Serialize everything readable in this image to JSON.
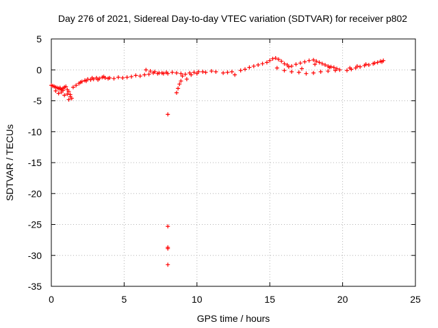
{
  "chart_data": {
    "type": "scatter",
    "title": "Day 276 of 2021, Sidereal Day-to-day VTEC variation (SDTVAR) for receiver p802",
    "xlabel": "GPS time / hours",
    "ylabel": "SDTVAR / TECUs",
    "xlim": [
      0,
      25
    ],
    "ylim": [
      -35,
      5
    ],
    "xticks": [
      0,
      5,
      10,
      15,
      20,
      25
    ],
    "yticks": [
      5,
      0,
      -5,
      -10,
      -15,
      -20,
      -25,
      -30,
      -35
    ],
    "grid": true,
    "marker": "+",
    "color": "#ff0000",
    "series": [
      {
        "name": "SDTVAR",
        "x": [
          0.0,
          0.1,
          0.2,
          0.3,
          0.4,
          0.5,
          0.6,
          0.7,
          0.8,
          0.9,
          1.0,
          1.1,
          1.2,
          1.3,
          1.4,
          0.3,
          0.5,
          0.7,
          0.9,
          1.1,
          1.3,
          1.2,
          0.8,
          0.6,
          1.5,
          1.7,
          1.9,
          2.1,
          2.3,
          2.5,
          2.7,
          2.9,
          3.1,
          3.3,
          3.5,
          3.7,
          3.9,
          2.0,
          2.4,
          2.8,
          3.2,
          3.6,
          4.0,
          4.3,
          4.6,
          4.9,
          5.2,
          5.5,
          5.8,
          6.1,
          6.4,
          6.7,
          7.0,
          7.3,
          7.6,
          7.9,
          6.5,
          6.8,
          7.1,
          7.4,
          7.7,
          8.0,
          8.3,
          8.6,
          8.9,
          9.2,
          9.5,
          9.8,
          10.1,
          10.4,
          9.0,
          9.3,
          9.6,
          8.8,
          8.7,
          8.6,
          8.9,
          10.0,
          10.6,
          11.0,
          11.3,
          11.8,
          12.1,
          12.4,
          12.6,
          13.0,
          13.3,
          13.6,
          13.9,
          14.2,
          14.5,
          14.8,
          15.0,
          15.2,
          15.4,
          15.6,
          15.8,
          16.0,
          16.2,
          16.5,
          16.8,
          17.1,
          17.4,
          17.7,
          18.0,
          18.2,
          18.4,
          18.6,
          18.8,
          19.0,
          19.2,
          19.4,
          19.6,
          19.8,
          15.5,
          16.0,
          16.5,
          17.0,
          17.5,
          18.0,
          18.5,
          19.0,
          19.5,
          16.3,
          17.2,
          18.1,
          19.1,
          20.3,
          20.6,
          20.9,
          21.2,
          21.5,
          21.8,
          22.1,
          22.4,
          22.6,
          22.8,
          20.5,
          21.0,
          21.6,
          22.2,
          22.7,
          8.0,
          8.0,
          8.0,
          8.0,
          8.0
        ],
        "y": [
          -2.5,
          -2.6,
          -2.7,
          -2.8,
          -2.9,
          -3.0,
          -3.1,
          -3.2,
          -3.0,
          -2.8,
          -2.7,
          -3.2,
          -3.5,
          -4.0,
          -4.6,
          -3.4,
          -3.8,
          -3.6,
          -4.1,
          -3.9,
          -4.3,
          -4.8,
          -3.3,
          -2.9,
          -2.8,
          -2.5,
          -2.2,
          -1.9,
          -1.7,
          -1.5,
          -1.6,
          -1.5,
          -1.3,
          -1.4,
          -1.2,
          -1.3,
          -1.4,
          -2.0,
          -1.8,
          -1.3,
          -1.6,
          -1.1,
          -1.3,
          -1.4,
          -1.2,
          -1.3,
          -1.2,
          -1.1,
          -0.9,
          -1.0,
          -0.8,
          -0.7,
          -0.5,
          -0.6,
          -0.5,
          -0.4,
          0.0,
          -0.2,
          -0.3,
          -0.5,
          -0.6,
          -0.6,
          -0.4,
          -0.5,
          -0.6,
          -0.7,
          -0.5,
          -0.4,
          -0.3,
          -0.3,
          -1.0,
          -1.5,
          -0.8,
          -2.3,
          -3.0,
          -3.7,
          -1.8,
          -0.6,
          -0.4,
          -0.2,
          -0.3,
          -0.5,
          -0.4,
          -0.3,
          -0.8,
          -0.1,
          0.1,
          0.4,
          0.6,
          0.8,
          1.0,
          1.2,
          1.5,
          1.8,
          1.9,
          1.7,
          1.4,
          1.0,
          0.8,
          0.6,
          0.9,
          1.1,
          1.3,
          1.5,
          1.6,
          1.4,
          1.2,
          1.0,
          0.8,
          0.6,
          0.5,
          0.4,
          0.2,
          0.0,
          0.3,
          -0.1,
          -0.3,
          -0.4,
          -0.6,
          -0.5,
          -0.3,
          -0.2,
          -0.1,
          0.5,
          0.2,
          0.9,
          0.4,
          -0.1,
          0.1,
          0.3,
          0.5,
          0.7,
          0.8,
          1.0,
          1.2,
          1.4,
          1.5,
          0.3,
          0.6,
          0.9,
          1.1,
          1.3,
          -7.2,
          -25.3,
          -28.7,
          -28.9,
          -31.5
        ]
      }
    ]
  }
}
